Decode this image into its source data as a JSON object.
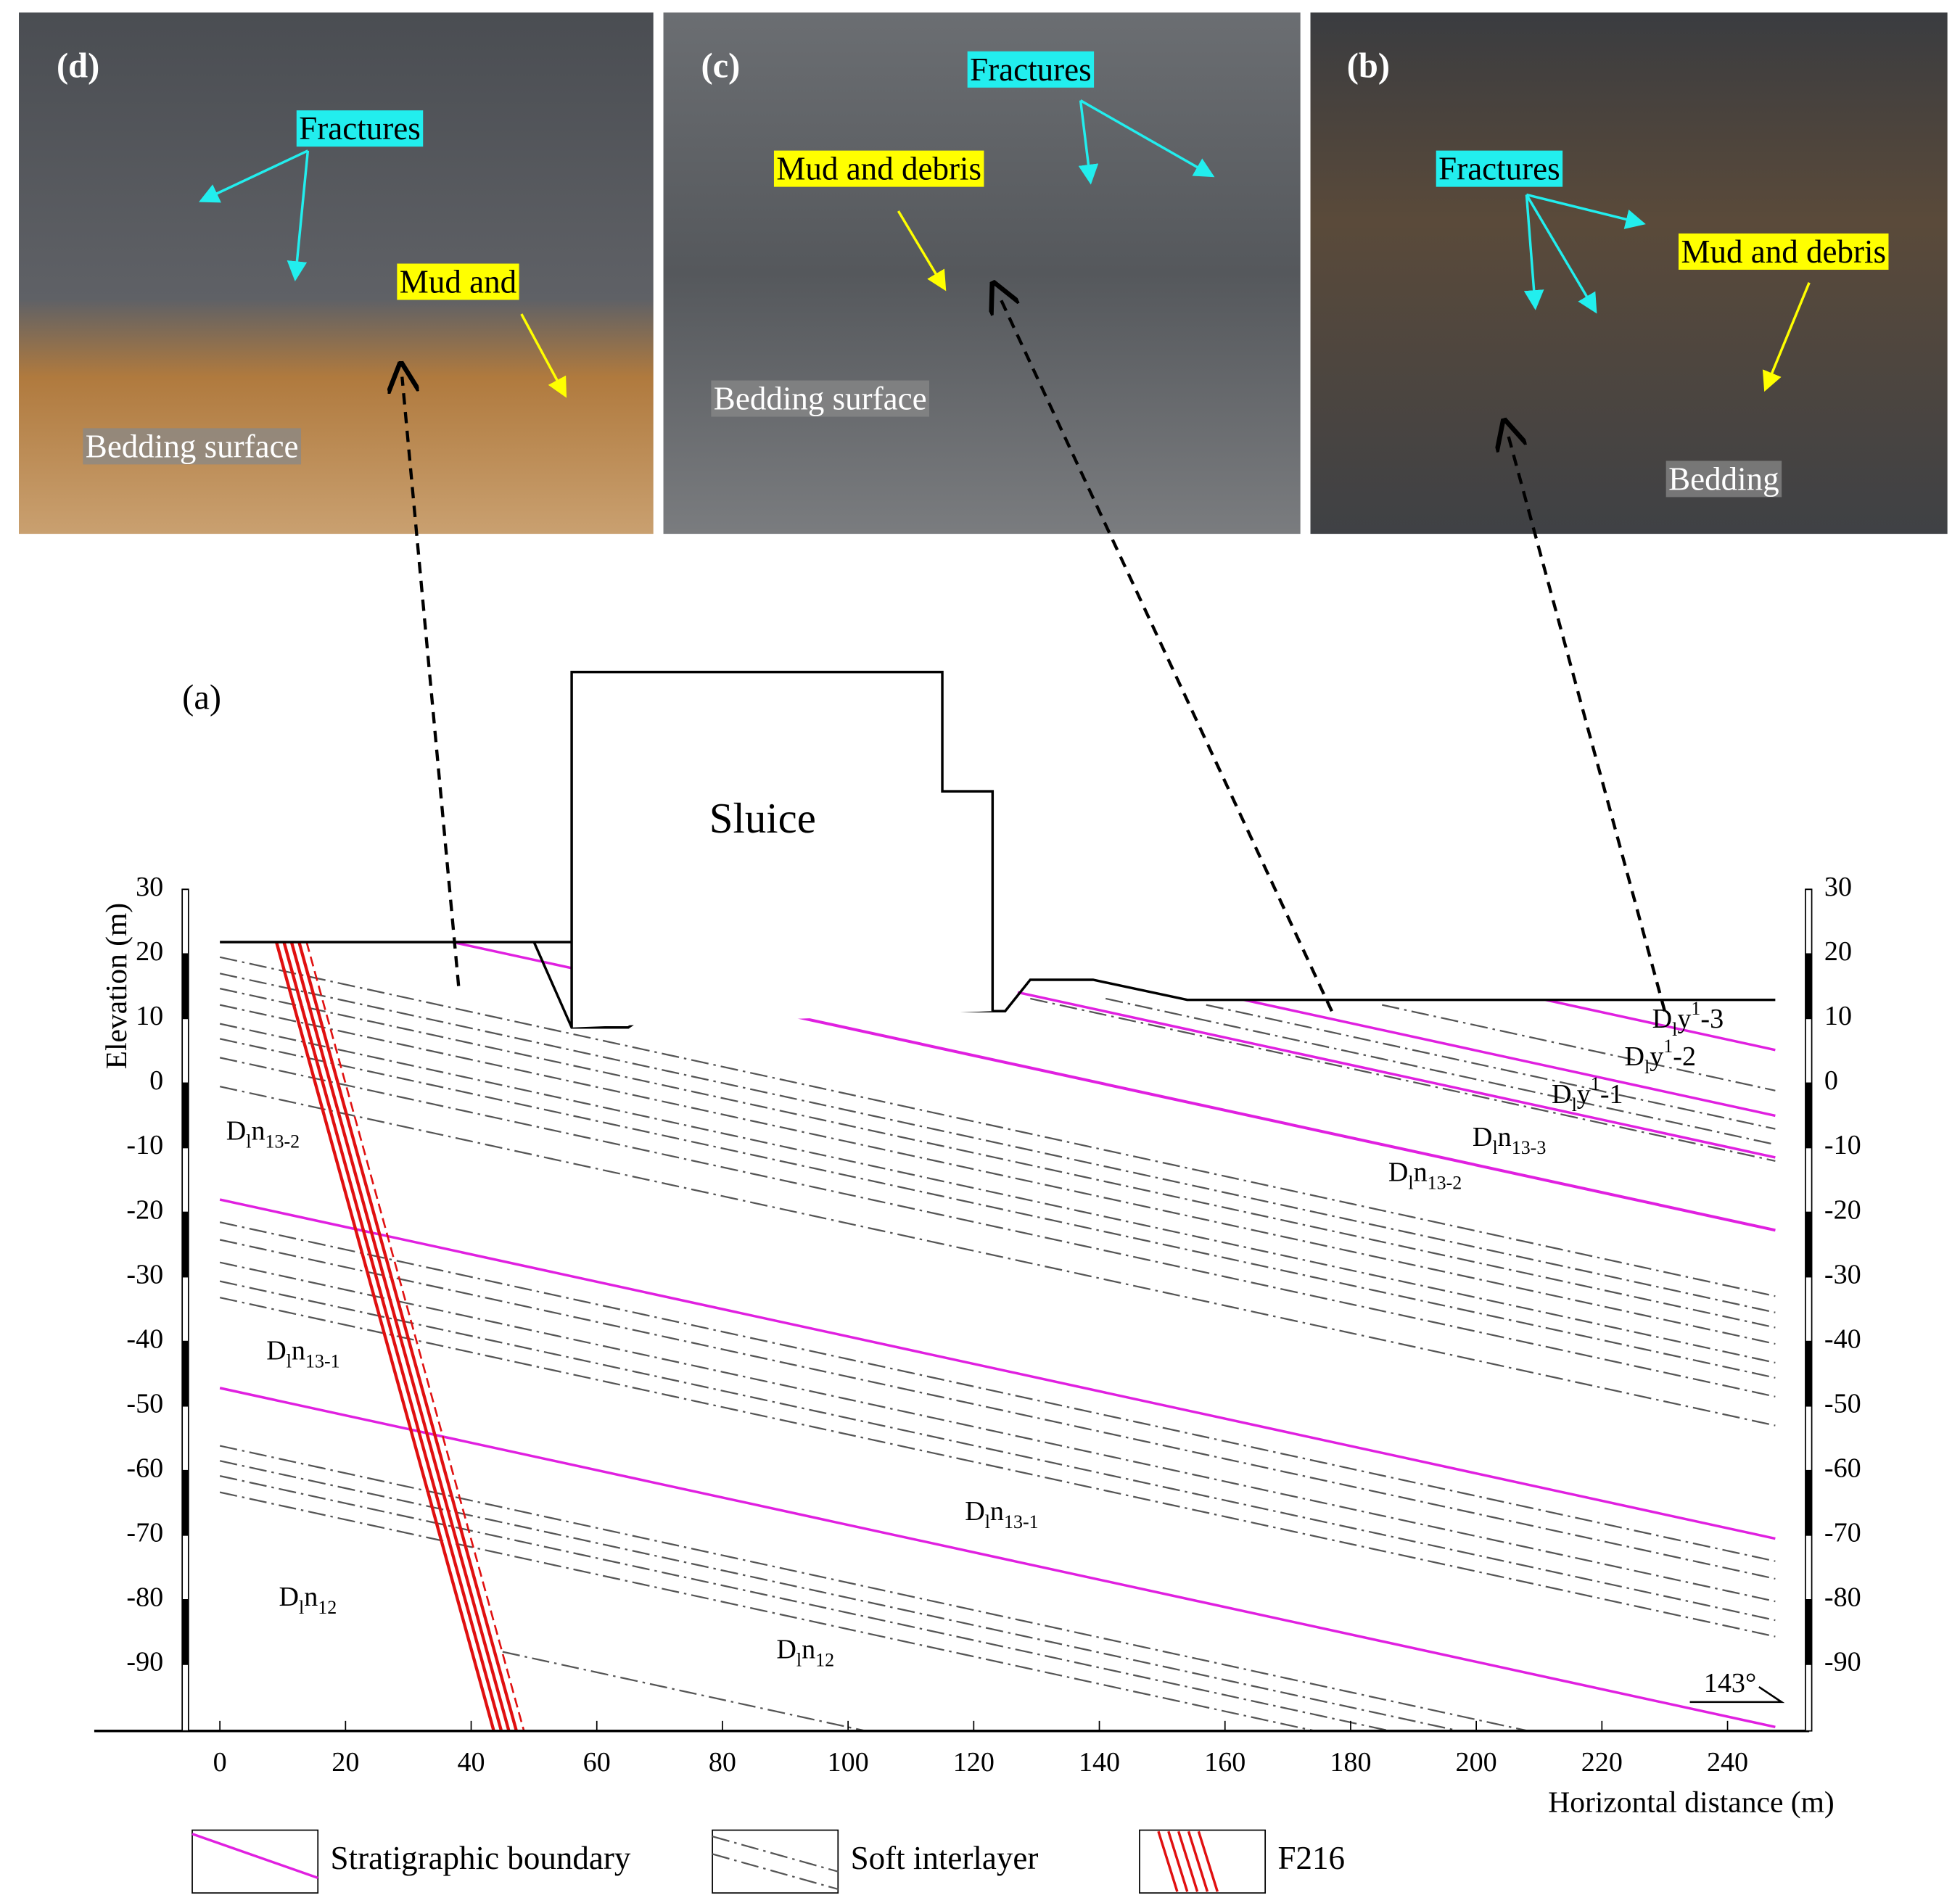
{
  "panels": [
    {
      "label": "(d)",
      "fractures": "Fractures",
      "mud": "Mud and",
      "bedding": "Bedding surface"
    },
    {
      "label": "(c)",
      "fractures": "Fractures",
      "mud": "Mud and debris",
      "bedding": "Bedding surface"
    },
    {
      "label": "(b)",
      "fractures": "Fractures",
      "mud": "Mud and debris",
      "bedding": "Bedding"
    }
  ],
  "section": {
    "label": "(a)",
    "structure": "Sluice",
    "y_axis_title": "Elevation (m)",
    "x_axis_title": "Horizontal distance (m)",
    "yticks": [
      30,
      20,
      10,
      0,
      -10,
      -20,
      -30,
      -40,
      -50,
      -60,
      -70,
      -80,
      -90
    ],
    "xticks": [
      0,
      20,
      40,
      60,
      80,
      100,
      120,
      140,
      160,
      180,
      200,
      220,
      240
    ],
    "angle": "143°",
    "units": [
      [
        {
          "text": "D"
        },
        {
          "text": "l",
          "shift": "sub"
        },
        {
          "text": "n"
        },
        {
          "text": "13-2",
          "shift": "sub"
        }
      ],
      [
        {
          "text": "D"
        },
        {
          "text": "l",
          "shift": "sub"
        },
        {
          "text": "n"
        },
        {
          "text": "13-1",
          "shift": "sub"
        }
      ],
      [
        {
          "text": "D"
        },
        {
          "text": "l",
          "shift": "sub"
        },
        {
          "text": "n"
        },
        {
          "text": "12",
          "shift": "sub"
        }
      ],
      [
        {
          "text": "D"
        },
        {
          "text": "l",
          "shift": "sub"
        },
        {
          "text": "y"
        },
        {
          "text": "1",
          "shift": "super"
        },
        {
          "text": "-3"
        }
      ],
      [
        {
          "text": "D"
        },
        {
          "text": "l",
          "shift": "sub"
        },
        {
          "text": "y"
        },
        {
          "text": "1",
          "shift": "super"
        },
        {
          "text": "-2"
        }
      ],
      [
        {
          "text": "D"
        },
        {
          "text": "l",
          "shift": "sub"
        },
        {
          "text": "y"
        },
        {
          "text": "1",
          "shift": "super"
        },
        {
          "text": "-1"
        }
      ],
      [
        {
          "text": "D"
        },
        {
          "text": "l",
          "shift": "sub"
        },
        {
          "text": "n"
        },
        {
          "text": "13-3",
          "shift": "sub"
        }
      ],
      [
        {
          "text": "D"
        },
        {
          "text": "l",
          "shift": "sub"
        },
        {
          "text": "n"
        },
        {
          "text": "13-2",
          "shift": "sub"
        }
      ],
      [
        {
          "text": "D"
        },
        {
          "text": "l",
          "shift": "sub"
        },
        {
          "text": "n"
        },
        {
          "text": "13-1",
          "shift": "sub"
        }
      ],
      [
        {
          "text": "D"
        },
        {
          "text": "l",
          "shift": "sub"
        },
        {
          "text": "n"
        },
        {
          "text": "12",
          "shift": "sub"
        }
      ]
    ]
  },
  "legend": [
    "Stratigraphic boundary",
    "Soft interlayer",
    "F216"
  ]
}
